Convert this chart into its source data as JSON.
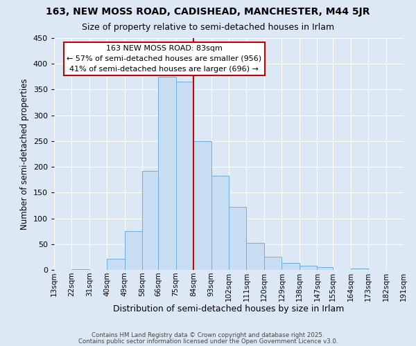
{
  "title": "163, NEW MOSS ROAD, CADISHEAD, MANCHESTER, M44 5JR",
  "subtitle": "Size of property relative to semi-detached houses in Irlam",
  "xlabel": "Distribution of semi-detached houses by size in Irlam",
  "ylabel": "Number of semi-detached properties",
  "bin_labels": [
    "13sqm",
    "22sqm",
    "31sqm",
    "40sqm",
    "49sqm",
    "58sqm",
    "66sqm",
    "75sqm",
    "84sqm",
    "93sqm",
    "102sqm",
    "111sqm",
    "120sqm",
    "129sqm",
    "138sqm",
    "147sqm",
    "155sqm",
    "164sqm",
    "173sqm",
    "182sqm",
    "191sqm"
  ],
  "bin_edges": [
    13,
    22,
    31,
    40,
    49,
    58,
    66,
    75,
    84,
    93,
    102,
    111,
    120,
    129,
    138,
    147,
    155,
    164,
    173,
    182,
    191
  ],
  "bar_heights": [
    0,
    1,
    0,
    22,
    75,
    192,
    375,
    365,
    250,
    183,
    122,
    53,
    25,
    13,
    8,
    5,
    0,
    3,
    0,
    0
  ],
  "bar_color": "#c9ddf2",
  "bar_edge_color": "#6aaee8",
  "vline_x": 84,
  "vline_color": "#cc0000",
  "annotation_title": "163 NEW MOSS ROAD: 83sqm",
  "annotation_line1": "← 57% of semi-detached houses are smaller (956)",
  "annotation_line2": "41% of semi-detached houses are larger (696) →",
  "annotation_box_color": "white",
  "annotation_box_edge": "#cc0000",
  "ylim": [
    0,
    450
  ],
  "yticks": [
    0,
    50,
    100,
    150,
    200,
    250,
    300,
    350,
    400,
    450
  ],
  "footer1": "Contains HM Land Registry data © Crown copyright and database right 2025.",
  "footer2": "Contains public sector information licensed under the Open Government Licence v3.0.",
  "background_color": "#dce9f5",
  "grid_color": "white",
  "title_fontsize": 10,
  "subtitle_fontsize": 9,
  "annotation_fontsize": 8
}
